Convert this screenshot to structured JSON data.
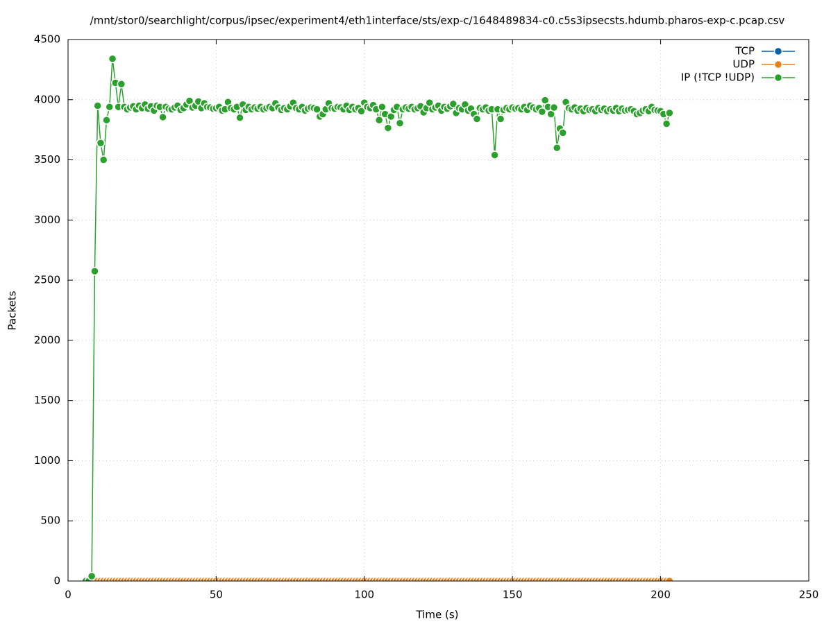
{
  "chart_data": {
    "type": "line",
    "title": "/mnt/stor0/searchlight/corpus/ipsec/experiment4/eth1interface/sts/exp-c/1648489834-c0.c5s3ipsecsts.hdumb.pharos-exp-c.pcap.csv",
    "xlabel": "Time (s)",
    "ylabel": "Packets",
    "xlim": [
      0,
      250
    ],
    "xticks": [
      0,
      50,
      100,
      150,
      200,
      250
    ],
    "ylim": [
      0,
      4500
    ],
    "yticks": [
      0,
      500,
      1000,
      1500,
      2000,
      2500,
      3000,
      3500,
      4000,
      4500
    ],
    "grid": true,
    "legend": "top-right",
    "x": [
      6,
      7,
      8,
      9,
      10,
      11,
      12,
      13,
      14,
      15,
      16,
      17,
      18,
      19,
      20,
      21,
      22,
      23,
      24,
      25,
      26,
      27,
      28,
      29,
      30,
      31,
      32,
      33,
      34,
      35,
      36,
      37,
      38,
      39,
      40,
      41,
      42,
      43,
      44,
      45,
      46,
      47,
      48,
      49,
      50,
      51,
      52,
      53,
      54,
      55,
      56,
      57,
      58,
      59,
      60,
      61,
      62,
      63,
      64,
      65,
      66,
      67,
      68,
      69,
      70,
      71,
      72,
      73,
      74,
      75,
      76,
      77,
      78,
      79,
      80,
      81,
      82,
      83,
      84,
      85,
      86,
      87,
      88,
      89,
      90,
      91,
      92,
      93,
      94,
      95,
      96,
      97,
      98,
      99,
      100,
      101,
      102,
      103,
      104,
      105,
      106,
      107,
      108,
      109,
      110,
      111,
      112,
      113,
      114,
      115,
      116,
      117,
      118,
      119,
      120,
      121,
      122,
      123,
      124,
      125,
      126,
      127,
      128,
      129,
      130,
      131,
      132,
      133,
      134,
      135,
      136,
      137,
      138,
      139,
      140,
      141,
      142,
      143,
      144,
      145,
      146,
      147,
      148,
      149,
      150,
      151,
      152,
      153,
      154,
      155,
      156,
      157,
      158,
      159,
      160,
      161,
      162,
      163,
      164,
      165,
      166,
      167,
      168,
      169,
      170,
      171,
      172,
      173,
      174,
      175,
      176,
      177,
      178,
      179,
      180,
      181,
      182,
      183,
      184,
      185,
      186,
      187,
      188,
      189,
      190,
      191,
      192,
      193,
      194,
      195,
      196,
      197,
      198,
      199,
      200,
      201,
      202,
      203
    ],
    "series": [
      {
        "name": "TCP",
        "color": "#0060ad",
        "values": [
          0,
          0,
          0,
          0,
          0,
          0,
          0,
          0,
          0,
          0,
          0,
          0,
          0,
          0,
          0,
          0,
          0,
          0,
          0,
          0,
          0,
          0,
          0,
          0,
          0,
          0,
          0,
          0,
          0,
          0,
          0,
          0,
          0,
          0,
          0,
          0,
          0,
          0,
          0,
          0,
          0,
          0,
          0,
          0,
          0,
          0,
          0,
          0,
          0,
          0,
          0,
          0,
          0,
          0,
          0,
          0,
          0,
          0,
          0,
          0,
          0,
          0,
          0,
          0,
          0,
          0,
          0,
          0,
          0,
          0,
          0,
          0,
          0,
          0,
          0,
          0,
          0,
          0,
          0,
          0,
          0,
          0,
          0,
          0,
          0,
          0,
          0,
          0,
          0,
          0,
          0,
          0,
          0,
          0,
          0,
          0,
          0,
          0,
          0,
          0,
          0,
          0,
          0,
          0,
          0,
          0,
          0,
          0,
          0,
          0,
          0,
          0,
          0,
          0,
          0,
          0,
          0,
          0,
          0,
          0,
          0,
          0,
          0,
          0,
          0,
          0,
          0,
          0,
          0,
          0,
          0,
          0,
          0,
          0,
          0,
          0,
          0,
          0,
          0,
          0,
          0,
          0,
          0,
          0,
          0,
          0,
          0,
          0,
          0,
          0,
          0,
          0,
          0,
          0,
          0,
          0,
          0,
          0,
          0,
          0,
          0,
          0,
          0,
          0,
          0,
          0,
          0,
          0,
          0,
          0,
          0,
          0,
          0,
          0,
          0,
          0,
          0,
          0,
          0,
          0,
          0,
          0,
          0,
          0,
          0,
          0,
          0,
          0,
          0,
          0,
          0,
          0,
          0,
          0,
          0,
          0,
          0,
          0
        ]
      },
      {
        "name": "UDP",
        "color": "#f07f10",
        "values": [
          0,
          0,
          0,
          0,
          0,
          0,
          0,
          0,
          0,
          0,
          0,
          0,
          0,
          0,
          0,
          0,
          0,
          0,
          0,
          0,
          0,
          0,
          0,
          0,
          0,
          0,
          0,
          0,
          0,
          0,
          0,
          0,
          0,
          0,
          0,
          0,
          0,
          0,
          0,
          0,
          0,
          0,
          0,
          0,
          0,
          0,
          0,
          0,
          0,
          0,
          0,
          0,
          0,
          0,
          0,
          0,
          0,
          0,
          0,
          0,
          0,
          0,
          0,
          0,
          0,
          0,
          0,
          0,
          0,
          0,
          0,
          0,
          0,
          0,
          0,
          0,
          0,
          0,
          0,
          0,
          0,
          0,
          0,
          0,
          0,
          0,
          0,
          0,
          0,
          0,
          0,
          0,
          0,
          0,
          0,
          0,
          0,
          0,
          0,
          0,
          0,
          0,
          0,
          0,
          0,
          0,
          0,
          0,
          0,
          0,
          0,
          0,
          0,
          0,
          0,
          0,
          0,
          0,
          0,
          0,
          0,
          0,
          0,
          0,
          0,
          0,
          0,
          0,
          0,
          0,
          0,
          0,
          0,
          0,
          0,
          0,
          0,
          0,
          0,
          0,
          0,
          0,
          0,
          0,
          0,
          0,
          0,
          0,
          0,
          0,
          0,
          0,
          0,
          0,
          0,
          0,
          0,
          0,
          0,
          0,
          0,
          0,
          0,
          0,
          0,
          0,
          0,
          0,
          0,
          0,
          0,
          0,
          0,
          0,
          0,
          0,
          0,
          0,
          0,
          0,
          0,
          0,
          0,
          0,
          0,
          0,
          0,
          0,
          0,
          0,
          0,
          0,
          0,
          0,
          0,
          0,
          0,
          0
        ]
      },
      {
        "name": "IP (!TCP  !UDP)",
        "color": "#2ca02c",
        "values": [
          0,
          0,
          40,
          2575,
          3950,
          3640,
          3500,
          3830,
          3940,
          4340,
          4140,
          3940,
          4130,
          3940,
          3920,
          3935,
          3945,
          3920,
          3950,
          3930,
          3960,
          3925,
          3945,
          3910,
          3950,
          3940,
          3855,
          3940,
          3925,
          3920,
          3935,
          3950,
          3915,
          3930,
          3960,
          3990,
          3935,
          3950,
          3985,
          3930,
          3970,
          3940,
          3935,
          3925,
          3930,
          3940,
          3910,
          3920,
          3980,
          3930,
          3920,
          3940,
          3850,
          3960,
          3915,
          3940,
          3920,
          3935,
          3925,
          3940,
          3920,
          3930,
          3940,
          3930,
          3970,
          3935,
          3915,
          3930,
          3920,
          3945,
          3975,
          3930,
          3920,
          3940,
          3910,
          3925,
          3935,
          3930,
          3920,
          3860,
          3880,
          3920,
          3970,
          3930,
          3925,
          3940,
          3935,
          3920,
          3950,
          3915,
          3940,
          3920,
          3930,
          3905,
          3975,
          3940,
          3930,
          3955,
          3920,
          3830,
          3940,
          3880,
          3765,
          3860,
          3915,
          3940,
          3805,
          3920,
          3935,
          3925,
          3940,
          3920,
          3930,
          3945,
          3895,
          3930,
          3975,
          3920,
          3935,
          3950,
          3910,
          3940,
          3925,
          3945,
          3965,
          3890,
          3930,
          3920,
          3960,
          3910,
          3925,
          3880,
          3840,
          3930,
          3920,
          3935,
          3910,
          3920,
          3540,
          3920,
          3840,
          3915,
          3930,
          3920,
          3935,
          3925,
          3930,
          3920,
          3940,
          3915,
          3950,
          3935,
          3920,
          3930,
          3900,
          3995,
          3940,
          3880,
          3935,
          3600,
          3760,
          3725,
          3980,
          3930,
          3920,
          3935,
          3910,
          3925,
          3905,
          3930,
          3915,
          3920,
          3905,
          3930,
          3915,
          3925,
          3905,
          3920,
          3910,
          3930,
          3905,
          3925,
          3910,
          3915,
          3920,
          3905,
          3880,
          3890,
          3910,
          3920,
          3905,
          3940,
          3915,
          3910,
          3905,
          3880,
          3800,
          3890
        ]
      }
    ]
  }
}
